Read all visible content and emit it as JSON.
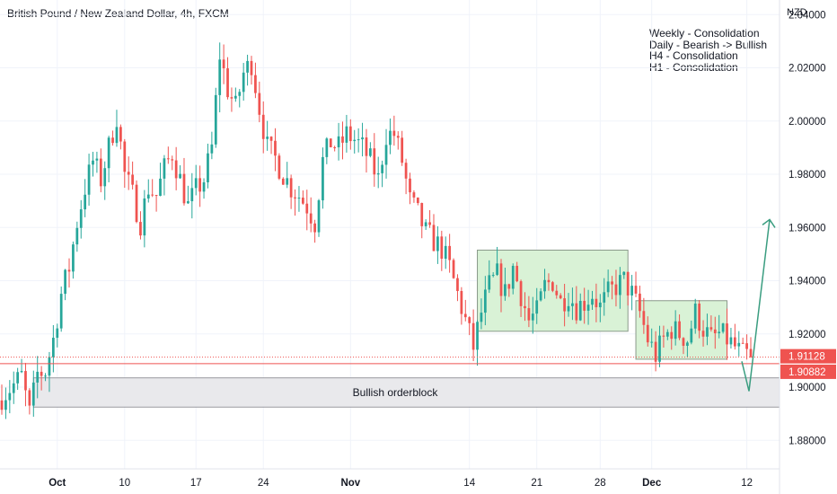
{
  "header": {
    "title": "British Pound / New Zealand Dollar, 4h, FXCM",
    "currency": "NZD"
  },
  "notes": [
    "Weekly - Consolidation",
    "Daily - Bearish -> Bullish",
    "H4 - Consolidation",
    "H1 - Consolidation"
  ],
  "colors": {
    "up": "#26a69a",
    "down": "#ef5350",
    "box_fill": "#d9f2d6",
    "box_stroke": "#8a9a8a",
    "orderblock_fill": "#e9e9ec",
    "arrow": "#3a9d80",
    "price_line": "#ef5350"
  },
  "chart_data": {
    "type": "candlestick",
    "ylim": [
      1.8693,
      2.0455
    ],
    "y_ticks": [
      "1.88000",
      "1.90000",
      "1.92000",
      "1.94000",
      "1.96000",
      "1.98000",
      "2.00000",
      "2.02000",
      "2.04000"
    ],
    "x_ticks": [
      "Oct",
      "10",
      "17",
      "24",
      "Nov",
      "14",
      "21",
      "28",
      "Dec",
      "12"
    ],
    "price_lines": [
      {
        "value": 1.91128,
        "label": "1.91128",
        "style": "dotted"
      },
      {
        "value": 1.90882,
        "label": "1.90882",
        "style": "solid"
      }
    ],
    "annotations": [
      {
        "type": "box",
        "label": "",
        "x_start": "Nov 6",
        "x_end": "Nov 29",
        "y_low": 1.921,
        "y_high": 1.9515
      },
      {
        "type": "box",
        "label": "",
        "x_start": "Dec 1",
        "x_end": "Dec 13",
        "y_low": 1.9105,
        "y_high": 1.9325
      },
      {
        "type": "orderblock",
        "label": "Bullish orderblock",
        "x_start": "Sep 29",
        "x_end": "Dec 16",
        "y_low": 1.8925,
        "y_high": 1.9035
      },
      {
        "type": "arrow",
        "points": [
          [
            1.9097,
            1.8985
          ],
          [
            1.8985,
            1.963
          ]
        ]
      }
    ],
    "path": [
      [
        0,
        1.895
      ],
      [
        6,
        1.904
      ],
      [
        8,
        1.89
      ],
      [
        10,
        1.905
      ],
      [
        12,
        1.906
      ],
      [
        14,
        1.918
      ],
      [
        16,
        1.935
      ],
      [
        18,
        1.945
      ],
      [
        20,
        1.962
      ],
      [
        22,
        1.975
      ],
      [
        24,
        1.985
      ],
      [
        26,
        1.978
      ],
      [
        28,
        1.99
      ],
      [
        30,
        2.002
      ],
      [
        32,
        1.98
      ],
      [
        34,
        1.972
      ],
      [
        36,
        1.962
      ],
      [
        38,
        1.975
      ],
      [
        40,
        1.972
      ],
      [
        42,
        1.982
      ],
      [
        44,
        1.988
      ],
      [
        46,
        1.978
      ],
      [
        48,
        1.968
      ],
      [
        50,
        1.974
      ],
      [
        52,
        1.978
      ],
      [
        54,
        1.99
      ],
      [
        56,
        2.025
      ],
      [
        58,
        2.012
      ],
      [
        60,
        2.005
      ],
      [
        62,
        2.018
      ],
      [
        64,
        2.022
      ],
      [
        66,
        2.005
      ],
      [
        68,
        1.99
      ],
      [
        70,
        1.986
      ],
      [
        72,
        1.98
      ],
      [
        74,
        1.975
      ],
      [
        76,
        1.972
      ],
      [
        78,
        1.968
      ],
      [
        80,
        1.962
      ],
      [
        82,
        1.985
      ],
      [
        84,
        1.992
      ],
      [
        86,
        1.99
      ],
      [
        88,
        1.995
      ],
      [
        90,
        1.993
      ],
      [
        92,
        1.99
      ],
      [
        94,
        1.985
      ],
      [
        96,
        1.978
      ],
      [
        98,
        1.995
      ],
      [
        100,
        1.995
      ],
      [
        102,
        1.985
      ],
      [
        104,
        1.97
      ],
      [
        106,
        1.965
      ],
      [
        108,
        1.958
      ],
      [
        110,
        1.955
      ],
      [
        112,
        1.952
      ],
      [
        114,
        1.945
      ],
      [
        116,
        1.935
      ],
      [
        118,
        1.925
      ],
      [
        120,
        1.915
      ],
      [
        122,
        1.928
      ],
      [
        124,
        1.938
      ],
      [
        126,
        1.942
      ],
      [
        128,
        1.935
      ],
      [
        130,
        1.945
      ],
      [
        132,
        1.935
      ],
      [
        134,
        1.925
      ],
      [
        136,
        1.928
      ],
      [
        138,
        1.938
      ],
      [
        140,
        1.94
      ],
      [
        142,
        1.932
      ],
      [
        144,
        1.935
      ],
      [
        146,
        1.93
      ],
      [
        148,
        1.932
      ],
      [
        150,
        1.935
      ],
      [
        152,
        1.93
      ],
      [
        154,
        1.935
      ],
      [
        156,
        1.938
      ],
      [
        158,
        1.94
      ],
      [
        160,
        1.935
      ],
      [
        162,
        1.928
      ],
      [
        164,
        1.918
      ],
      [
        166,
        1.912
      ],
      [
        168,
        1.918
      ],
      [
        170,
        1.922
      ],
      [
        172,
        1.92
      ],
      [
        174,
        1.918
      ],
      [
        176,
        1.928
      ],
      [
        178,
        1.922
      ],
      [
        180,
        1.918
      ],
      [
        182,
        1.92
      ],
      [
        184,
        1.918
      ],
      [
        186,
        1.915
      ],
      [
        188,
        1.912
      ]
    ],
    "last_close": 1.91128
  }
}
